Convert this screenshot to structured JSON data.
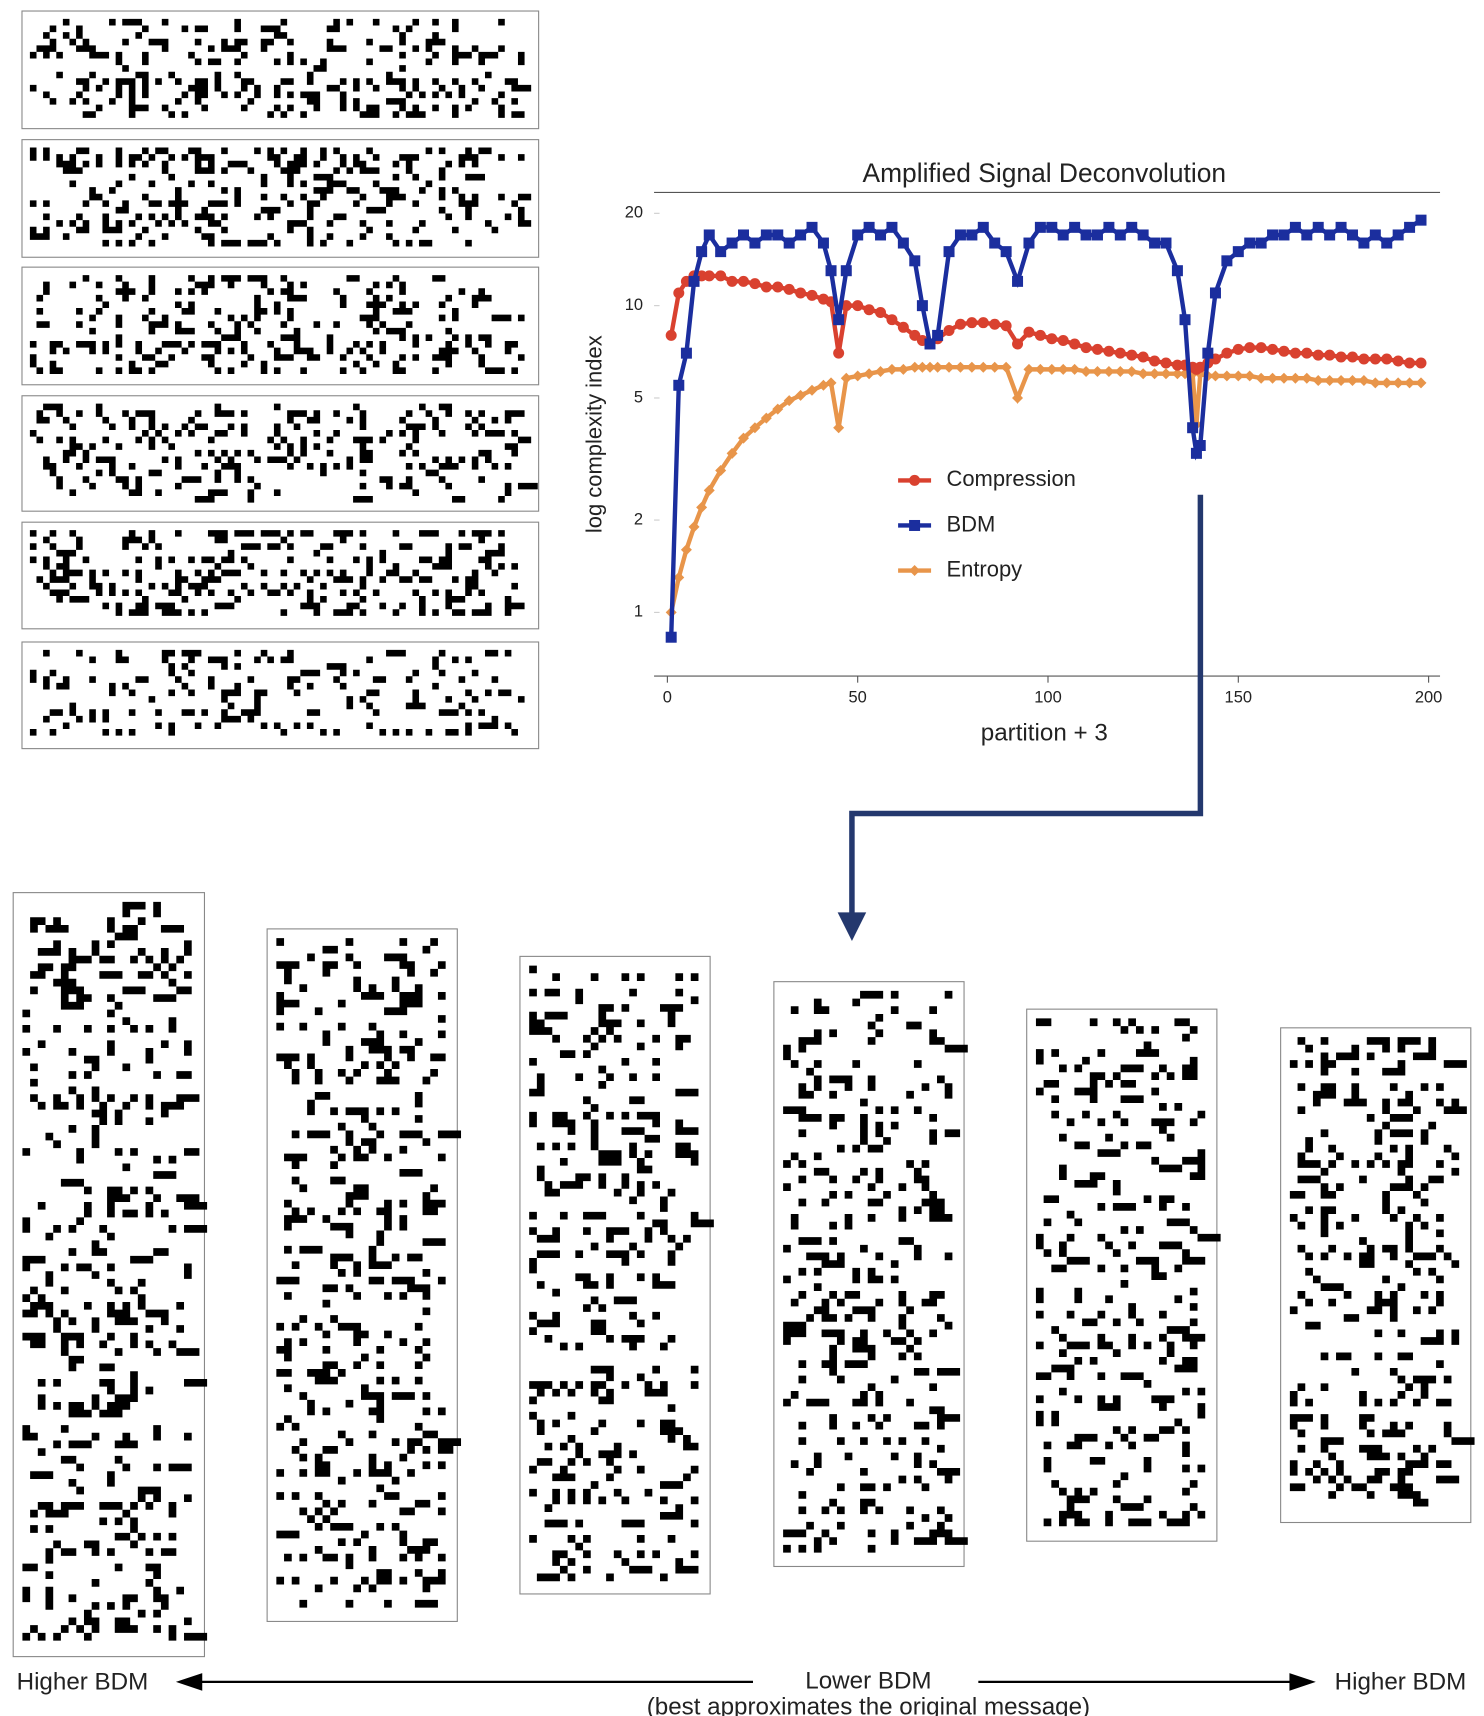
{
  "chart_data": {
    "type": "line",
    "title": "Amplified Signal Deconvolution",
    "x_label": "partition + 3",
    "y_label": "log complexity index",
    "y_scale": "log",
    "xlim": [
      -3.5,
      203
    ],
    "ylim": [
      0.62,
      23.4
    ],
    "xticks": [
      0,
      50,
      100,
      150,
      200
    ],
    "yticks": [
      1,
      2,
      5,
      10,
      20
    ],
    "legend_position": "center",
    "x": [
      1,
      3,
      5,
      7,
      9,
      11,
      14,
      17,
      20,
      23,
      26,
      29,
      32,
      35,
      38,
      41,
      43,
      45,
      47,
      50,
      53,
      56,
      59,
      62,
      65,
      67,
      69,
      71,
      74,
      77,
      80,
      83,
      86,
      89,
      92,
      95,
      98,
      101,
      104,
      107,
      110,
      113,
      116,
      119,
      122,
      125,
      128,
      131,
      134,
      136,
      138,
      139,
      140,
      142,
      144,
      147,
      150,
      153,
      156,
      159,
      162,
      165,
      168,
      171,
      174,
      177,
      180,
      183,
      186,
      189,
      192,
      195,
      198
    ],
    "series": [
      {
        "name": "Compression",
        "color": "#d9412f",
        "marker": "circle",
        "values": [
          8,
          11,
          12,
          12.5,
          12.5,
          12.5,
          12.5,
          12,
          12,
          11.8,
          11.5,
          11.5,
          11.3,
          11,
          10.8,
          10.5,
          10.3,
          7,
          10,
          10,
          9.7,
          9.5,
          9,
          8.5,
          8,
          7.7,
          7.5,
          7.8,
          8.3,
          8.7,
          8.8,
          8.8,
          8.7,
          8.6,
          7.5,
          8.2,
          8,
          7.8,
          7.7,
          7.5,
          7.3,
          7.2,
          7.1,
          7,
          6.9,
          6.8,
          6.6,
          6.5,
          6.4,
          6.4,
          6.3,
          6.2,
          6.3,
          6.5,
          6.7,
          7,
          7.2,
          7.3,
          7.3,
          7.2,
          7.1,
          7,
          7,
          6.9,
          6.9,
          6.8,
          6.8,
          6.7,
          6.7,
          6.7,
          6.6,
          6.5,
          6.5
        ]
      },
      {
        "name": "BDM",
        "color": "#1b2e9e",
        "marker": "square",
        "values": [
          0.83,
          5.5,
          7,
          12,
          15,
          17,
          15,
          16,
          17,
          16,
          17,
          17,
          16,
          17,
          18,
          16,
          13,
          9,
          13,
          17,
          18,
          17,
          18,
          16,
          14,
          10,
          7.5,
          8,
          15,
          17,
          17,
          18,
          16,
          15,
          12,
          16,
          18,
          18,
          17,
          18,
          17,
          17,
          18,
          17,
          18,
          17,
          16,
          16,
          13,
          9,
          4,
          3.3,
          3.5,
          7,
          11,
          14,
          15,
          16,
          16,
          17,
          17,
          18,
          17,
          18,
          17,
          18,
          17,
          16,
          17,
          16,
          17,
          18,
          19
        ]
      },
      {
        "name": "Entropy",
        "color": "#e8954a",
        "marker": "diamond",
        "values": [
          1,
          1.3,
          1.6,
          1.9,
          2.2,
          2.5,
          2.9,
          3.3,
          3.7,
          4,
          4.3,
          4.6,
          4.9,
          5.1,
          5.3,
          5.5,
          5.6,
          4,
          5.8,
          5.9,
          6,
          6.1,
          6.2,
          6.2,
          6.3,
          6.3,
          6.3,
          6.3,
          6.3,
          6.3,
          6.3,
          6.3,
          6.3,
          6.3,
          5,
          6.2,
          6.2,
          6.2,
          6.2,
          6.2,
          6.1,
          6.1,
          6.1,
          6.1,
          6.1,
          6.0,
          6.0,
          6.0,
          6.0,
          6.0,
          6.0,
          4.1,
          6.0,
          5.9,
          5.9,
          5.9,
          5.9,
          5.9,
          5.8,
          5.8,
          5.8,
          5.8,
          5.8,
          5.7,
          5.7,
          5.7,
          5.7,
          5.7,
          5.6,
          5.6,
          5.6,
          5.6,
          5.6
        ]
      }
    ],
    "annotations": {
      "left": "Higher BDM",
      "center": "Lower BDM",
      "center_note": "(best approximates the original message)",
      "right": "Higher BDM"
    }
  }
}
